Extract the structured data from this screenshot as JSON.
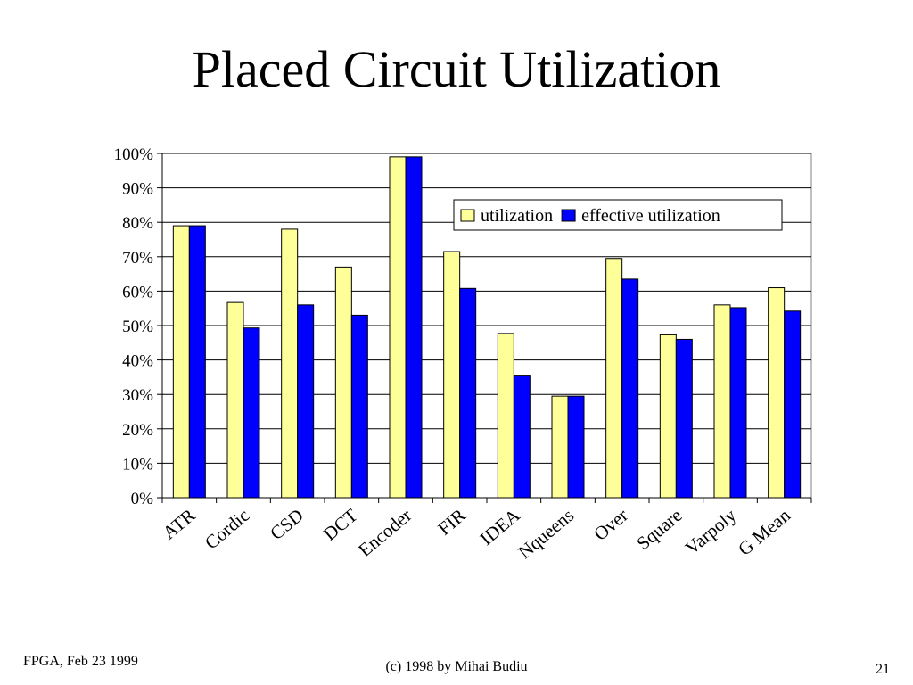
{
  "slide": {
    "title": "Placed Circuit Utilization",
    "footer_left": "FPGA, Feb 23 1999",
    "footer_center": "(c) 1998 by Mihai Budiu",
    "footer_right": "21"
  },
  "chart_data": {
    "type": "bar",
    "title": "",
    "xlabel": "",
    "ylabel": "",
    "ylim": [
      0,
      100
    ],
    "yticks": [
      "0%",
      "10%",
      "20%",
      "30%",
      "40%",
      "50%",
      "60%",
      "70%",
      "80%",
      "90%",
      "100%"
    ],
    "grid": true,
    "legend_position": "top-right",
    "categories": [
      "ATR",
      "Cordic",
      "CSD",
      "DCT",
      "Encoder",
      "FIR",
      "IDEA",
      "Nqueens",
      "Over",
      "Square",
      "Varpoly",
      "G Mean"
    ],
    "series": [
      {
        "name": "utilization",
        "color": "#ffff99",
        "values": [
          79,
          56.7,
          78,
          67,
          99,
          71.5,
          47.7,
          29.5,
          69.5,
          47.3,
          56,
          61
        ]
      },
      {
        "name": "effective utilization",
        "color": "#0000ff",
        "values": [
          79,
          49.3,
          56,
          53,
          99,
          60.8,
          35.6,
          29.5,
          63.5,
          46,
          55.2,
          54.2
        ]
      }
    ]
  }
}
